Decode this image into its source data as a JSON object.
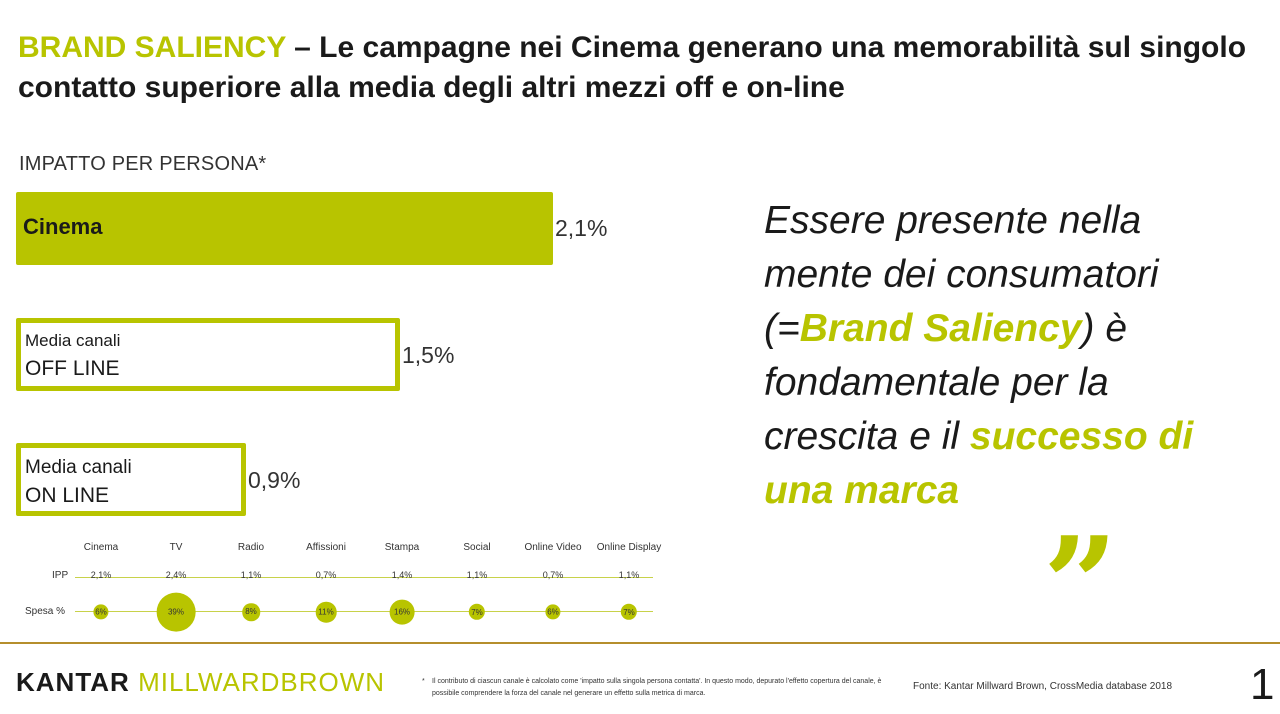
{
  "title": {
    "accent": "BRAND SALIENCY",
    "rest": " – Le campagne nei Cinema generano una memorabilità sul singolo contatto superiore alla media degli altri mezzi off e on-line"
  },
  "chart_data": [
    {
      "type": "bar",
      "title": "IMPATTO PER PERSONA*",
      "categories": [
        "Cinema",
        "Media canali OFF LINE",
        "Media canali ON LINE"
      ],
      "values": [
        2.1,
        1.5,
        0.9
      ],
      "value_labels": [
        "2,1%",
        "1,5%",
        "0,9%"
      ],
      "unit": "%",
      "styles": [
        "filled",
        "outline",
        "outline"
      ]
    },
    {
      "type": "table",
      "columns": [
        "Cinema",
        "TV",
        "Radio",
        "Affissioni",
        "Stampa",
        "Social",
        "Online Video",
        "Online Display"
      ],
      "rows": [
        {
          "label": "IPP",
          "values": [
            2.1,
            2.4,
            1.1,
            0.7,
            1.4,
            1.1,
            0.7,
            1.1
          ],
          "labels": [
            "2,1%",
            "2,4%",
            "1,1%",
            "0,7%",
            "1,4%",
            "1,1%",
            "0,7%",
            "1,1%"
          ]
        },
        {
          "label": "Spesa %",
          "values": [
            6,
            39,
            8,
            11,
            16,
            7,
            6,
            7
          ],
          "labels": [
            "6%",
            "39%",
            "8%",
            "11%",
            "16%",
            "7%",
            "6%",
            "7%"
          ]
        }
      ]
    }
  ],
  "bars": {
    "cinema_label": "Cinema",
    "offline_line1": "Media canali",
    "offline_line2": "OFF LINE",
    "online_line1": "Media canali",
    "online_line2": "ON LINE"
  },
  "quote": {
    "part1": "Essere presente nella mente dei consumatori (=",
    "brand": "Brand Saliency",
    "part2": ") è fondamentale per la crescita e il ",
    "success": "successo di una marca",
    "mark": "”"
  },
  "footer": {
    "logo_kantar": "KANTAR",
    "logo_mb": "MILLWARDBROWN",
    "footnote_star": "*",
    "footnote": "Il contributo di ciascun canale è calcolato come 'impatto sulla singola persona contatta'. In questo modo, depurato l'effetto copertura del canale, è possibile comprendere la forza del canale nel generare un effetto sulla metrica di marca.",
    "source": "Fonte: Kantar Millward Brown, CrossMedia database 2018",
    "page": "1"
  },
  "colors": {
    "accent": "#b8c400",
    "divider": "#b58e2c",
    "text": "#1a1a1a"
  }
}
